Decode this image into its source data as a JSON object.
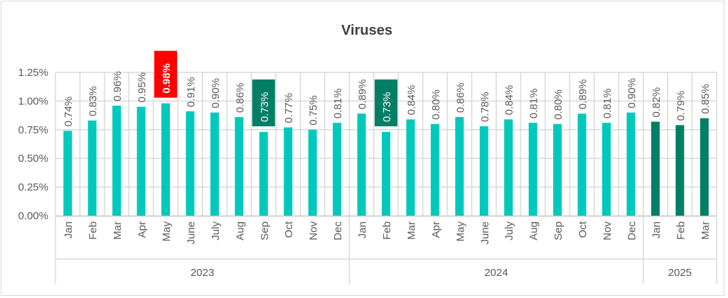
{
  "chart_data": {
    "type": "bar",
    "title": "Viruses",
    "xlabel": "",
    "ylabel": "",
    "ylim": [
      0,
      1.25
    ],
    "yticks": [
      "0.00%",
      "0.25%",
      "0.50%",
      "0.75%",
      "1.00%",
      "1.25%"
    ],
    "ytick_values": [
      0,
      0.25,
      0.5,
      0.75,
      1.0,
      1.25
    ],
    "grid": true,
    "groups": [
      {
        "year": "2023",
        "months": [
          "Jan",
          "Feb",
          "Mar",
          "Apr",
          "May",
          "June",
          "July",
          "Aug",
          "Sep",
          "Oct",
          "Nov",
          "Dec"
        ],
        "values": [
          0.74,
          0.83,
          0.96,
          0.95,
          0.98,
          0.91,
          0.9,
          0.86,
          0.73,
          0.77,
          0.75,
          0.81
        ],
        "labels": [
          "0.74%",
          "0.83%",
          "0.96%",
          "0.95%",
          "0.98%",
          "0.91%",
          "0.90%",
          "0.86%",
          "0.73%",
          "0.77%",
          "0.75%",
          "0.81%"
        ]
      },
      {
        "year": "2024",
        "months": [
          "Jan",
          "Feb",
          "Mar",
          "Apr",
          "May",
          "June",
          "July",
          "Aug",
          "Sep",
          "Oct",
          "Nov",
          "Dec"
        ],
        "values": [
          0.89,
          0.73,
          0.84,
          0.8,
          0.86,
          0.78,
          0.84,
          0.81,
          0.8,
          0.89,
          0.81,
          0.9
        ],
        "labels": [
          "0.89%",
          "0.73%",
          "0.84%",
          "0.80%",
          "0.86%",
          "0.78%",
          "0.84%",
          "0.81%",
          "0.80%",
          "0.89%",
          "0.81%",
          "0.90%"
        ]
      },
      {
        "year": "2025",
        "months": [
          "Jan",
          "Feb",
          "Mar"
        ],
        "values": [
          0.82,
          0.79,
          0.85
        ],
        "labels": [
          "0.82%",
          "0.79%",
          "0.85%"
        ]
      }
    ],
    "highlights": {
      "max": {
        "group": 0,
        "index": 4,
        "color": "#ff0000"
      },
      "min": [
        {
          "group": 0,
          "index": 8
        },
        {
          "group": 1,
          "index": 1
        }
      ],
      "min_color": "#007f66"
    },
    "colors": {
      "bar": "#00c9bc",
      "bar_current_year": "#007f66",
      "grid": "#d9d9d9",
      "text": "#595959",
      "title": "#404040"
    }
  }
}
